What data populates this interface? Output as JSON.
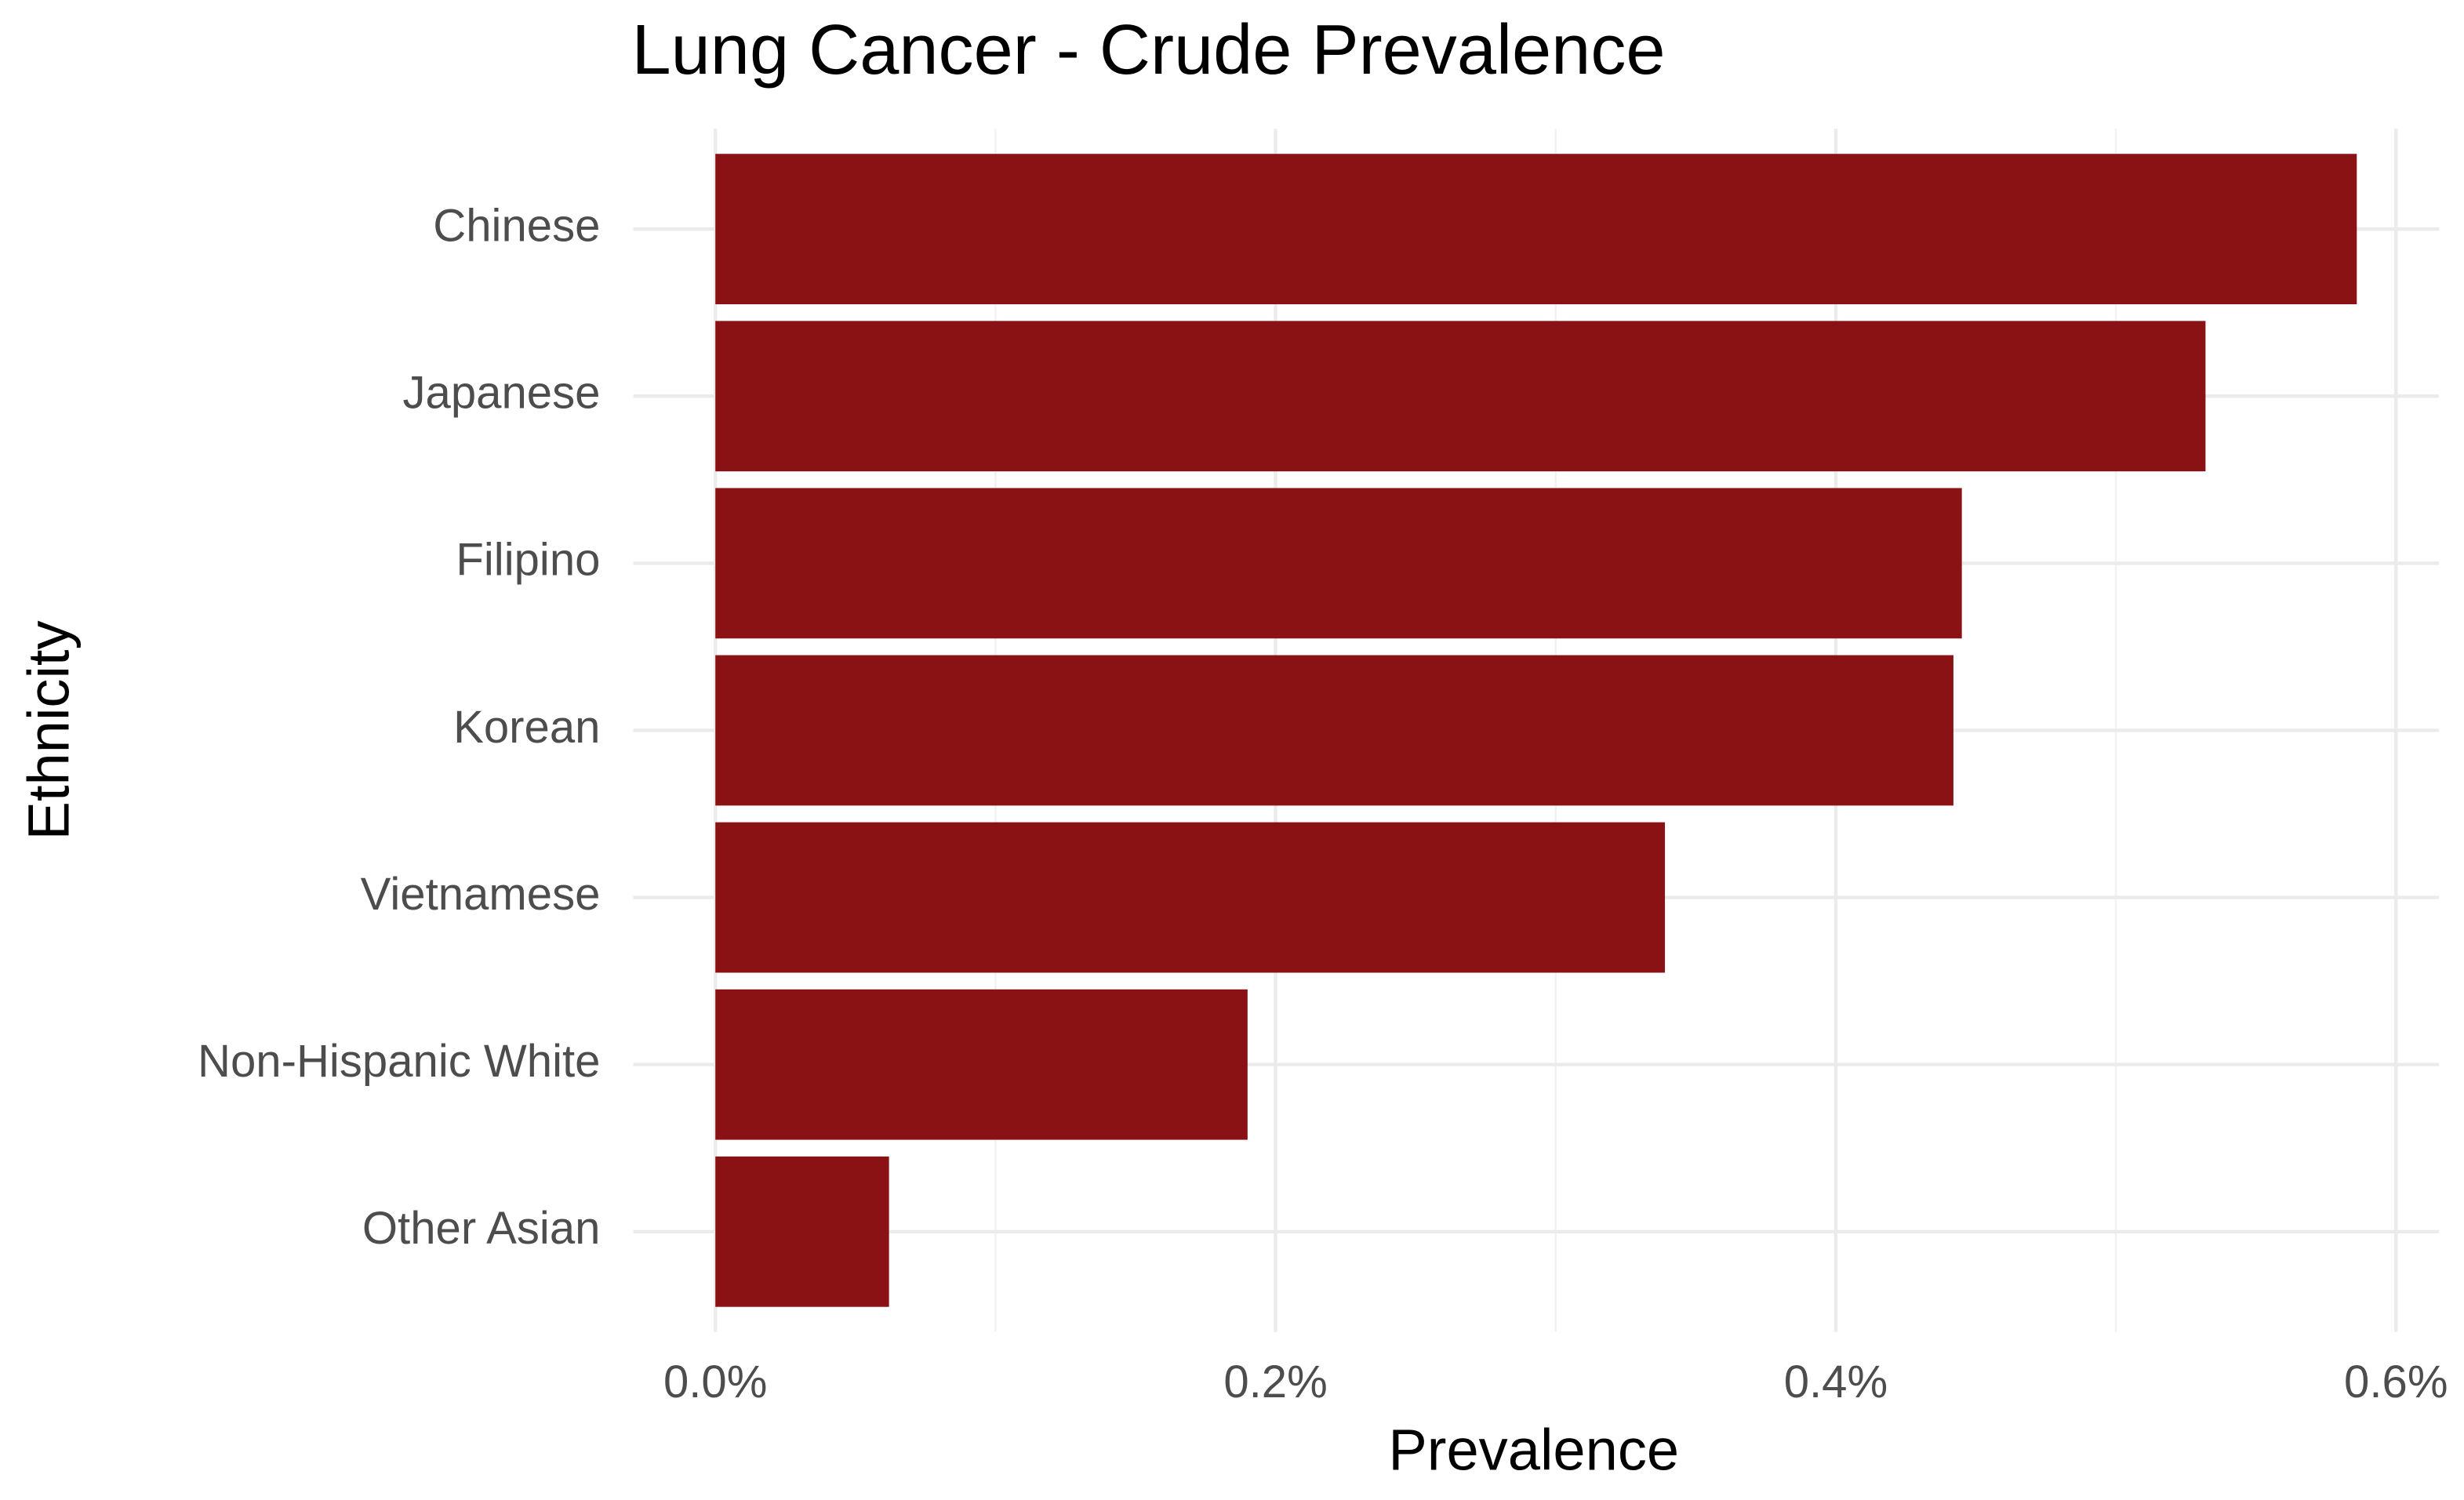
{
  "chart_data": {
    "type": "barh",
    "title": "Lung Cancer - Crude Prevalence",
    "x_label": "Prevalence",
    "y_label": "Ethnicity",
    "categories": [
      "Chinese",
      "Japanese",
      "Filipino",
      "Korean",
      "Vietnamese",
      "Non-Hispanic White",
      "Other Asian"
    ],
    "values": [
      0.586,
      0.532,
      0.445,
      0.442,
      0.339,
      0.19,
      0.062
    ],
    "color": "#8b1214",
    "xlim": [
      -0.0293,
      0.6153
    ],
    "xticks": [
      {
        "value": 0,
        "label": "0.0%"
      },
      {
        "value": 0.2,
        "label": "0.2%"
      },
      {
        "value": 0.4,
        "label": "0.4%"
      },
      {
        "value": 0.6,
        "label": "0.6%"
      }
    ],
    "minor_xticks": [
      0.1,
      0.3,
      0.5
    ],
    "grid": true
  }
}
